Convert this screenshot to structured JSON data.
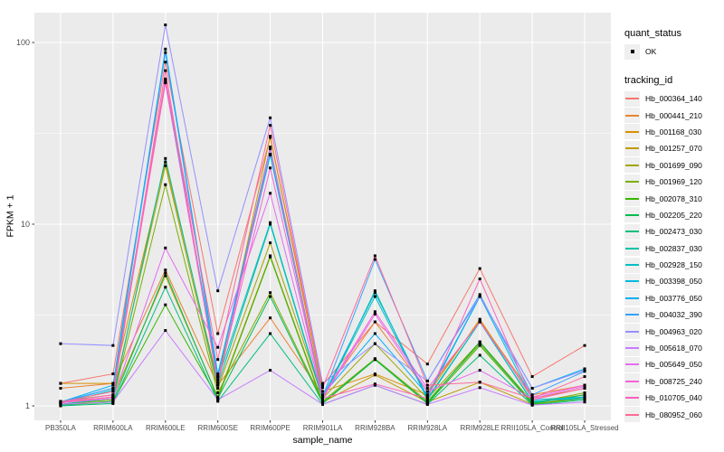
{
  "chart_data": {
    "type": "line",
    "xlabel": "sample_name",
    "ylabel": "FPKM + 1",
    "y_scale": "log10",
    "yticks": [
      1,
      10,
      100
    ],
    "ylim": [
      0.85,
      150
    ],
    "grid": "on",
    "legend_position": "right",
    "point_shape": "small black square (quant_status OK marker on every data point)",
    "categories": [
      "PB350LA",
      "RRIM600LA",
      "RRIM600LE",
      "RRIM600SE",
      "RRIM600PE",
      "RRIM901LA",
      "RRIM928BA",
      "RRIM928LA",
      "RRIM928LE",
      "RRII105LA_Control",
      "RRII105LA_Stressed"
    ],
    "legend": {
      "quant_title": "quant_status",
      "quant_items": [
        {
          "label": "OK",
          "marker": "black-point"
        }
      ],
      "series_title": "tracking_id"
    },
    "colors": {
      "panel_bg": "#EBEBEB",
      "grid_line": "#FFFFFF",
      "point": "#000000",
      "tick_mark": "#333333",
      "tick_label": "#4D4D4D",
      "key_bg": "#EFEFEF"
    },
    "series": [
      {
        "name": "Hb_000364_140",
        "color": "#F8766D",
        "values": [
          1.33,
          1.5,
          78,
          2.5,
          30,
          1.3,
          2.9,
          1.7,
          5.7,
          1.45,
          2.15
        ]
      },
      {
        "name": "Hb_000441_210",
        "color": "#EA8331",
        "values": [
          1.25,
          1.33,
          5.6,
          1.3,
          3.05,
          1.15,
          2.9,
          1.2,
          2.95,
          1.15,
          1.3
        ]
      },
      {
        "name": "Hb_001168_030",
        "color": "#D89000",
        "values": [
          1.33,
          1.33,
          22,
          1.35,
          30.5,
          1.2,
          1.5,
          1.15,
          3.0,
          1.1,
          1.25
        ]
      },
      {
        "name": "Hb_001257_070",
        "color": "#C09B00",
        "values": [
          1.05,
          1.12,
          5.2,
          1.12,
          6.7,
          1.05,
          1.48,
          1.05,
          1.35,
          1.02,
          1.12
        ]
      },
      {
        "name": "Hb_001699_090",
        "color": "#A3A500",
        "values": [
          1.06,
          1.15,
          21,
          1.25,
          7.9,
          1.1,
          2.2,
          1.1,
          2.25,
          1.05,
          1.15
        ]
      },
      {
        "name": "Hb_001969_120",
        "color": "#7CAE00",
        "values": [
          1.02,
          1.08,
          16.5,
          1.18,
          4.2,
          1.06,
          1.82,
          1.06,
          2.2,
          1.04,
          1.18
        ]
      },
      {
        "name": "Hb_002078_310",
        "color": "#39B600",
        "values": [
          1.01,
          1.05,
          3.6,
          1.1,
          6.6,
          1.03,
          1.8,
          1.03,
          2.15,
          1.02,
          1.1
        ]
      },
      {
        "name": "Hb_002205_220",
        "color": "#00BB4E",
        "values": [
          1.01,
          1.06,
          5.4,
          1.1,
          4.0,
          1.04,
          1.8,
          1.04,
          2.25,
          1.03,
          1.15
        ]
      },
      {
        "name": "Hb_002473_030",
        "color": "#00BF7D",
        "values": [
          1.0,
          1.03,
          4.5,
          1.06,
          2.5,
          1.02,
          1.3,
          1.02,
          1.9,
          1.01,
          1.08
        ]
      },
      {
        "name": "Hb_002837_030",
        "color": "#00C1A3",
        "values": [
          1.02,
          1.1,
          23,
          1.3,
          10.0,
          1.08,
          4.3,
          1.08,
          2.9,
          1.05,
          1.12
        ]
      },
      {
        "name": "Hb_002928_150",
        "color": "#00BFC4",
        "values": [
          1.03,
          1.22,
          60,
          1.4,
          10.2,
          1.1,
          4.0,
          1.1,
          2.9,
          1.06,
          1.1
        ]
      },
      {
        "name": "Hb_003398_050",
        "color": "#00BAE0",
        "values": [
          1.04,
          1.25,
          62,
          1.45,
          24,
          1.12,
          4.2,
          1.12,
          4.0,
          1.08,
          1.12
        ]
      },
      {
        "name": "Hb_003776_050",
        "color": "#00B0F6",
        "values": [
          1.05,
          1.3,
          92,
          1.5,
          24.3,
          1.15,
          2.5,
          1.15,
          4.0,
          1.25,
          1.6
        ]
      },
      {
        "name": "Hb_004032_390",
        "color": "#35A2FF",
        "values": [
          1.05,
          1.25,
          88,
          1.45,
          26.6,
          1.12,
          6.4,
          1.37,
          4.1,
          1.15,
          1.55
        ]
      },
      {
        "name": "Hb_004963_020",
        "color": "#9590FF",
        "values": [
          2.2,
          2.15,
          125,
          4.3,
          38.5,
          1.33,
          2.2,
          1.37,
          4.0,
          1.25,
          1.57
        ]
      },
      {
        "name": "Hb_005618_070",
        "color": "#C77CFF",
        "values": [
          1.02,
          1.05,
          2.6,
          1.08,
          1.57,
          1.02,
          1.3,
          1.02,
          1.26,
          1.01,
          1.05
        ]
      },
      {
        "name": "Hb_005649_050",
        "color": "#E76BF3",
        "values": [
          1.04,
          1.1,
          7.4,
          2.1,
          14.8,
          1.1,
          3.2,
          1.2,
          1.57,
          1.1,
          1.28
        ]
      },
      {
        "name": "Hb_008725_240",
        "color": "#FA62DB",
        "values": [
          1.05,
          1.15,
          60,
          1.35,
          20.4,
          1.12,
          3.3,
          1.25,
          2.9,
          1.12,
          1.3
        ]
      },
      {
        "name": "Hb_010705_040",
        "color": "#FF62BC",
        "values": [
          1.04,
          1.12,
          70,
          1.3,
          26,
          1.1,
          1.32,
          1.1,
          5.0,
          1.08,
          1.25
        ]
      },
      {
        "name": "Hb_080952_060",
        "color": "#FF6A98",
        "values": [
          1.05,
          1.2,
          63,
          1.8,
          35,
          1.26,
          6.7,
          1.3,
          1.35,
          1.1,
          1.45
        ]
      }
    ]
  }
}
